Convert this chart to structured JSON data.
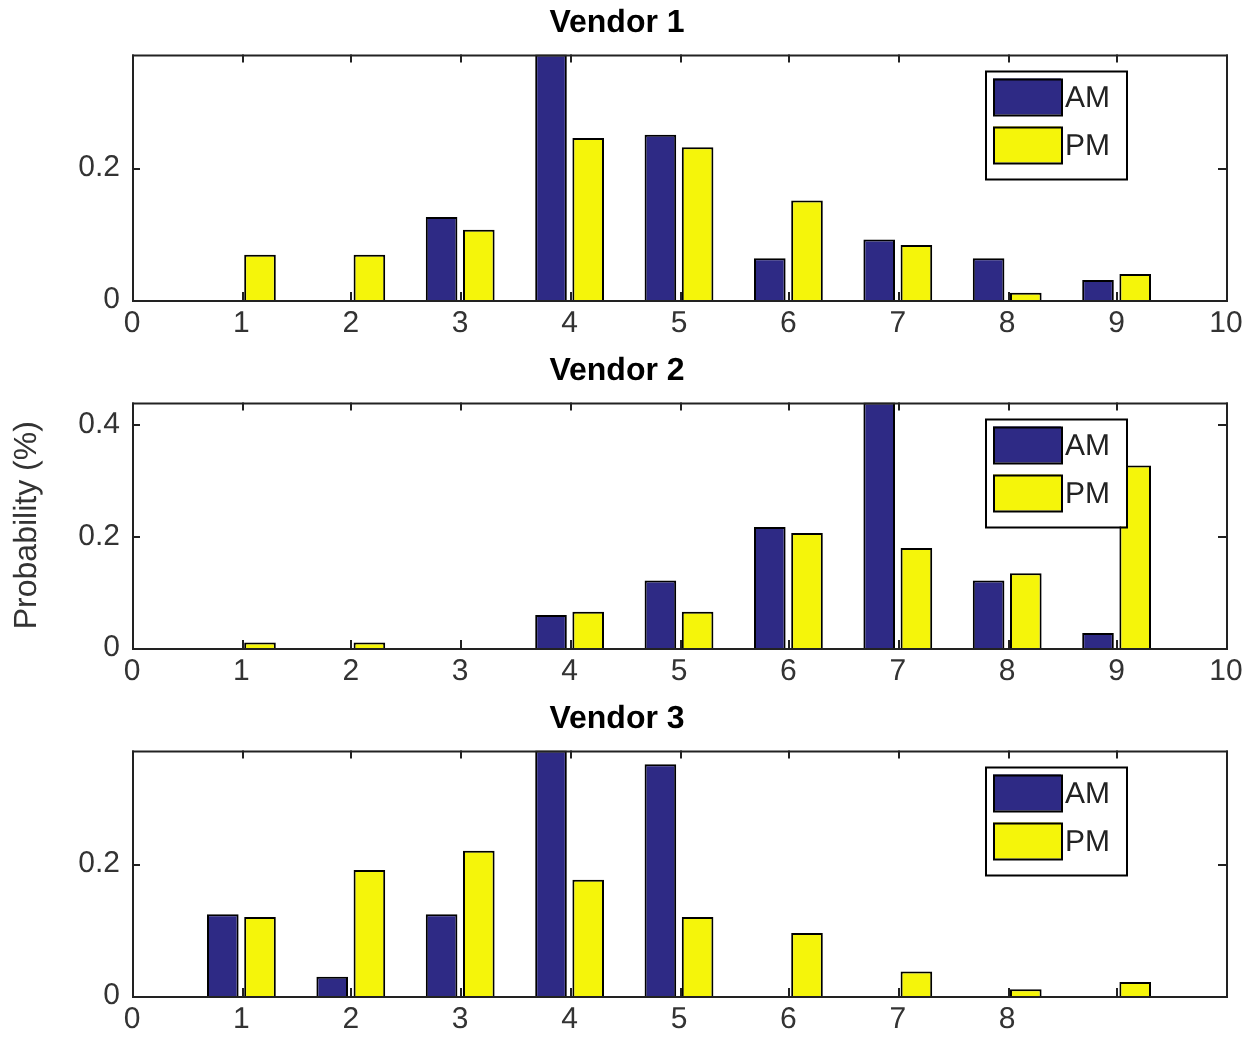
{
  "chart_data": [
    {
      "type": "bar",
      "title": "Vendor 1",
      "x": [
        1,
        2,
        3,
        4,
        5,
        6,
        7,
        8,
        9
      ],
      "xlim": [
        0,
        10
      ],
      "xticks": [
        0,
        1,
        2,
        3,
        4,
        5,
        6,
        7,
        8,
        9,
        10
      ],
      "ylim": [
        0,
        0.37
      ],
      "yticks": [
        0,
        0.2
      ],
      "legend": "top right",
      "grid": false,
      "series": [
        {
          "name": "AM",
          "color": "#2e2a85",
          "values": [
            0,
            0,
            0.125,
            0.37,
            0.249,
            0.063,
            0.091,
            0.063,
            0.03
          ]
        },
        {
          "name": "PM",
          "color": "#f5f50a",
          "values": [
            0.068,
            0.068,
            0.106,
            0.244,
            0.23,
            0.15,
            0.083,
            0.011,
            0.039
          ]
        }
      ]
    },
    {
      "type": "bar",
      "title": "Vendor 2",
      "ylabel": "Probability (%)",
      "x": [
        1,
        2,
        3,
        4,
        5,
        6,
        7,
        8,
        9
      ],
      "xlim": [
        0,
        10
      ],
      "xticks": [
        0,
        1,
        2,
        3,
        4,
        5,
        6,
        7,
        8,
        9,
        10
      ],
      "ylim": [
        0,
        0.44
      ],
      "yticks": [
        0,
        0.2,
        0.4
      ],
      "legend": "top right",
      "grid": false,
      "series": [
        {
          "name": "AM",
          "color": "#2e2a85",
          "values": [
            0,
            0,
            0,
            0.059,
            0.121,
            0.217,
            0.44,
            0.121,
            0.027
          ]
        },
        {
          "name": "PM",
          "color": "#f5f50a",
          "values": [
            0.01,
            0.01,
            0,
            0.065,
            0.065,
            0.206,
            0.179,
            0.134,
            0.327
          ]
        }
      ]
    },
    {
      "type": "bar",
      "title": "Vendor 3",
      "x": [
        1,
        2,
        3,
        4,
        5,
        6,
        7,
        8,
        9
      ],
      "xlim": [
        0,
        10
      ],
      "xticks": [
        0,
        1,
        2,
        3,
        4,
        5,
        6,
        7,
        8,
        {
          "value": 9,
          "label": null
        },
        {
          "value": 10,
          "label": null
        }
      ],
      "ylim": [
        0,
        0.37
      ],
      "yticks": [
        0,
        0.2
      ],
      "legend": "top right",
      "grid": false,
      "series": [
        {
          "name": "AM",
          "color": "#2e2a85",
          "values": [
            0.123,
            0.029,
            0.123,
            0.37,
            0.349,
            0,
            0,
            0,
            0
          ]
        },
        {
          "name": "PM",
          "color": "#f5f50a",
          "values": [
            0.119,
            0.19,
            0.219,
            0.175,
            0.119,
            0.095,
            0.037,
            0.01,
            0.021
          ]
        }
      ]
    }
  ]
}
